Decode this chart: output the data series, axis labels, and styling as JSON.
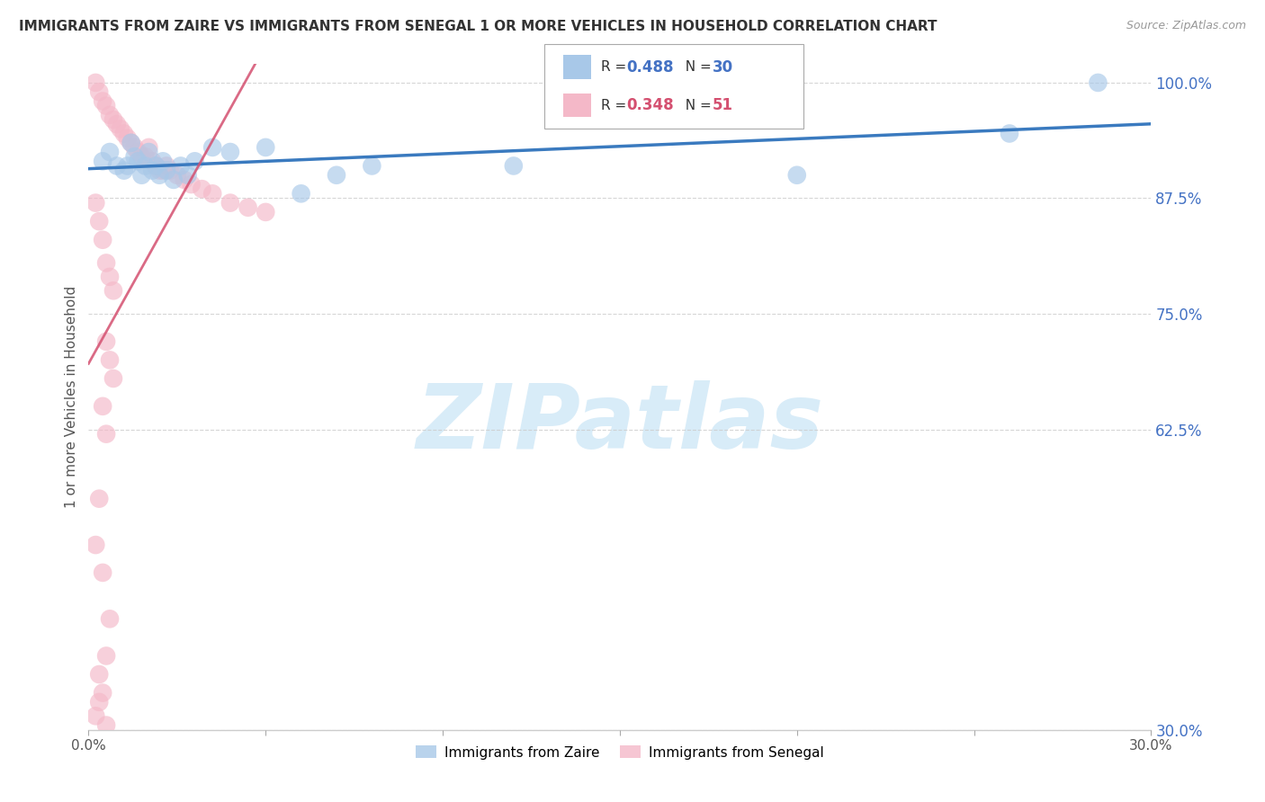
{
  "title": "IMMIGRANTS FROM ZAIRE VS IMMIGRANTS FROM SENEGAL 1 OR MORE VEHICLES IN HOUSEHOLD CORRELATION CHART",
  "source": "Source: ZipAtlas.com",
  "ylabel": "1 or more Vehicles in Household",
  "xlim": [
    0.0,
    30.0
  ],
  "ylim": [
    30.0,
    102.0
  ],
  "ytick_positions": [
    100.0,
    87.5,
    75.0,
    62.5,
    30.0
  ],
  "ytick_labels": [
    "100.0%",
    "87.5%",
    "75.0%",
    "62.5%",
    "30.0%"
  ],
  "xtick_positions": [
    0.0,
    30.0
  ],
  "xtick_labels": [
    "0.0%",
    "30.0%"
  ],
  "zaire_color": "#a8c8e8",
  "senegal_color": "#f4b8c8",
  "zaire_line_color": "#3a7abf",
  "senegal_line_color": "#d45070",
  "zaire_R": 0.488,
  "zaire_N": 30,
  "senegal_R": 0.348,
  "senegal_N": 51,
  "watermark_text": "ZIPatlas",
  "watermark_color": "#d8ecf8",
  "grid_color": "#cccccc",
  "tick_label_color": "#4472c4",
  "legend_box_color": "#aaaaaa",
  "zaire_x": [
    0.4,
    0.6,
    0.8,
    1.0,
    1.1,
    1.2,
    1.3,
    1.4,
    1.5,
    1.6,
    1.7,
    1.8,
    1.9,
    2.0,
    2.1,
    2.2,
    2.4,
    2.6,
    2.8,
    3.0,
    3.5,
    4.0,
    5.0,
    6.0,
    7.0,
    8.0,
    12.0,
    20.0,
    26.0,
    28.5
  ],
  "zaire_y": [
    91.5,
    92.5,
    91.0,
    90.5,
    91.0,
    93.5,
    92.0,
    91.5,
    90.0,
    91.0,
    92.5,
    90.5,
    91.0,
    90.0,
    91.5,
    90.5,
    89.5,
    91.0,
    90.0,
    91.5,
    93.0,
    92.5,
    93.0,
    88.0,
    90.0,
    91.0,
    91.0,
    90.0,
    94.5,
    100.0
  ],
  "senegal_x": [
    0.2,
    0.3,
    0.4,
    0.5,
    0.6,
    0.7,
    0.8,
    0.9,
    1.0,
    1.1,
    1.2,
    1.3,
    1.4,
    1.5,
    1.6,
    1.7,
    1.8,
    1.9,
    2.0,
    2.1,
    2.2,
    2.3,
    2.5,
    2.7,
    2.9,
    3.2,
    3.5,
    4.0,
    4.5,
    5.0,
    0.2,
    0.3,
    0.4,
    0.5,
    0.6,
    0.7,
    0.5,
    0.6,
    0.7,
    0.4,
    0.5,
    0.3,
    0.2,
    0.4,
    0.6,
    0.5,
    0.3,
    0.4,
    0.3,
    0.2,
    0.5
  ],
  "senegal_y": [
    100.0,
    99.0,
    98.0,
    97.5,
    96.5,
    96.0,
    95.5,
    95.0,
    94.5,
    94.0,
    93.5,
    93.0,
    92.5,
    92.0,
    92.0,
    93.0,
    91.5,
    91.0,
    90.5,
    90.5,
    91.0,
    90.5,
    90.0,
    89.5,
    89.0,
    88.5,
    88.0,
    87.0,
    86.5,
    86.0,
    87.0,
    85.0,
    83.0,
    80.5,
    79.0,
    77.5,
    72.0,
    70.0,
    68.0,
    65.0,
    62.0,
    55.0,
    50.0,
    47.0,
    42.0,
    38.0,
    36.0,
    34.0,
    33.0,
    31.5,
    30.5
  ]
}
